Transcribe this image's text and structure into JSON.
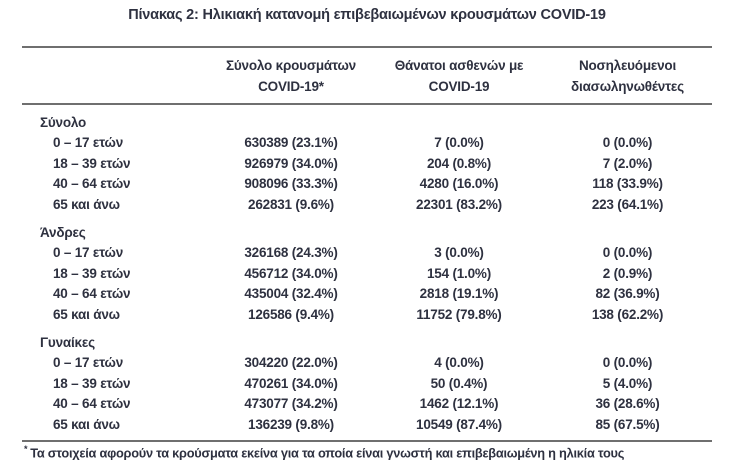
{
  "title": "Πίνακας 2: Ηλικιακή κατανομή επιβεβαιωμένων κρουσμάτων COVID-19",
  "colors": {
    "text": "#2e3140",
    "rule": "#6f6f6f",
    "background": "#ffffff"
  },
  "table": {
    "columns": [
      {
        "line1": "Σύνολο κρουσμάτων",
        "line2": "COVID-19*"
      },
      {
        "line1": "Θάνατοι ασθενών με",
        "line2": "COVID-19"
      },
      {
        "line1": "Νοσηλευόμενοι",
        "line2": "διασωληνωθέντες"
      }
    ],
    "sections": [
      {
        "label": "Σύνολο",
        "rows": [
          {
            "age": "0 – 17 ετών",
            "cases": "630389 (23.1%)",
            "deaths": "7 (0.0%)",
            "intubated": "0 (0.0%)"
          },
          {
            "age": "18 – 39 ετών",
            "cases": "926979 (34.0%)",
            "deaths": "204 (0.8%)",
            "intubated": "7 (2.0%)"
          },
          {
            "age": "40 – 64 ετών",
            "cases": "908096 (33.3%)",
            "deaths": "4280 (16.0%)",
            "intubated": "118 (33.9%)"
          },
          {
            "age": "65 και άνω",
            "cases": "262831 (9.6%)",
            "deaths": "22301 (83.2%)",
            "intubated": "223 (64.1%)"
          }
        ]
      },
      {
        "label": "Άνδρες",
        "rows": [
          {
            "age": "0 – 17 ετών",
            "cases": "326168 (24.3%)",
            "deaths": "3 (0.0%)",
            "intubated": "0 (0.0%)"
          },
          {
            "age": "18 – 39 ετών",
            "cases": "456712 (34.0%)",
            "deaths": "154 (1.0%)",
            "intubated": "2 (0.9%)"
          },
          {
            "age": "40 – 64 ετών",
            "cases": "435004 (32.4%)",
            "deaths": "2818 (19.1%)",
            "intubated": "82 (36.9%)"
          },
          {
            "age": "65 και άνω",
            "cases": "126586 (9.4%)",
            "deaths": "11752 (79.8%)",
            "intubated": "138 (62.2%)"
          }
        ]
      },
      {
        "label": "Γυναίκες",
        "rows": [
          {
            "age": "0 – 17 ετών",
            "cases": "304220 (22.0%)",
            "deaths": "4 (0.0%)",
            "intubated": "0 (0.0%)"
          },
          {
            "age": "18 – 39 ετών",
            "cases": "470261 (34.0%)",
            "deaths": "50 (0.4%)",
            "intubated": "5 (4.0%)"
          },
          {
            "age": "40 – 64 ετών",
            "cases": "473077 (34.2%)",
            "deaths": "1462 (12.1%)",
            "intubated": "36 (28.6%)"
          },
          {
            "age": "65 και άνω",
            "cases": "136239 (9.8%)",
            "deaths": "10549 (87.4%)",
            "intubated": "85 (67.5%)"
          }
        ]
      }
    ]
  },
  "footnote": {
    "marker": "*",
    "text": "Τα στοιχεία αφορούν τα κρούσματα εκείνα για τα οποία είναι γνωστή και επιβεβαιωμένη η ηλικία τους"
  }
}
